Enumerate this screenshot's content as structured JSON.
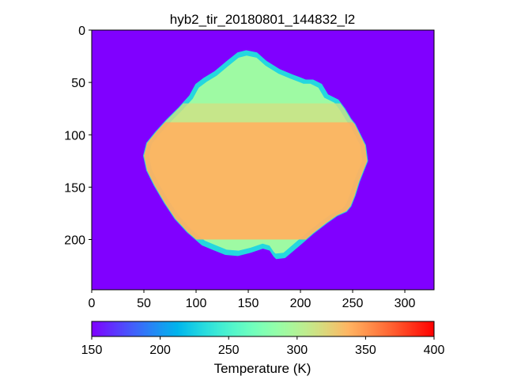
{
  "chart_data": {
    "type": "heatmap",
    "title": "hyb2_tir_20180801_144832_l2",
    "image_width": 328,
    "image_height": 248,
    "x_ticks": [
      0,
      50,
      100,
      150,
      200,
      250,
      300
    ],
    "y_ticks": [
      0,
      50,
      100,
      150,
      200
    ],
    "xlim": [
      0,
      328
    ],
    "ylim": [
      248,
      0
    ],
    "background_value": 150,
    "colorbar": {
      "label": "Temperature (K)",
      "range": [
        150,
        400
      ],
      "ticks": [
        150,
        200,
        250,
        300,
        350,
        400
      ],
      "colormap": "rainbow"
    },
    "object": {
      "name": "asteroid",
      "outline": [
        [
          148,
          20
        ],
        [
          158,
          22
        ],
        [
          167,
          30
        ],
        [
          180,
          38
        ],
        [
          192,
          43
        ],
        [
          200,
          46
        ],
        [
          205,
          48
        ],
        [
          212,
          48
        ],
        [
          220,
          52
        ],
        [
          226,
          62
        ],
        [
          236,
          67
        ],
        [
          242,
          75
        ],
        [
          248,
          85
        ],
        [
          252,
          90
        ],
        [
          257,
          100
        ],
        [
          262,
          110
        ],
        [
          264,
          125
        ],
        [
          260,
          135
        ],
        [
          256,
          145
        ],
        [
          252,
          158
        ],
        [
          248,
          168
        ],
        [
          244,
          173
        ],
        [
          235,
          177
        ],
        [
          225,
          184
        ],
        [
          212,
          194
        ],
        [
          198,
          206
        ],
        [
          185,
          217
        ],
        [
          177,
          218
        ],
        [
          175,
          216
        ],
        [
          171,
          210
        ],
        [
          164,
          208
        ],
        [
          152,
          212
        ],
        [
          140,
          215
        ],
        [
          128,
          214
        ],
        [
          118,
          210
        ],
        [
          106,
          205
        ],
        [
          92,
          193
        ],
        [
          80,
          180
        ],
        [
          70,
          165
        ],
        [
          60,
          148
        ],
        [
          53,
          134
        ],
        [
          50,
          120
        ],
        [
          53,
          108
        ],
        [
          62,
          97
        ],
        [
          72,
          86
        ],
        [
          84,
          74
        ],
        [
          94,
          63
        ],
        [
          100,
          52
        ],
        [
          108,
          46
        ],
        [
          118,
          40
        ],
        [
          130,
          30
        ],
        [
          140,
          22
        ]
      ],
      "rim_temperature": 230,
      "upper_temperature": 290,
      "core_temperature": 338
    }
  }
}
